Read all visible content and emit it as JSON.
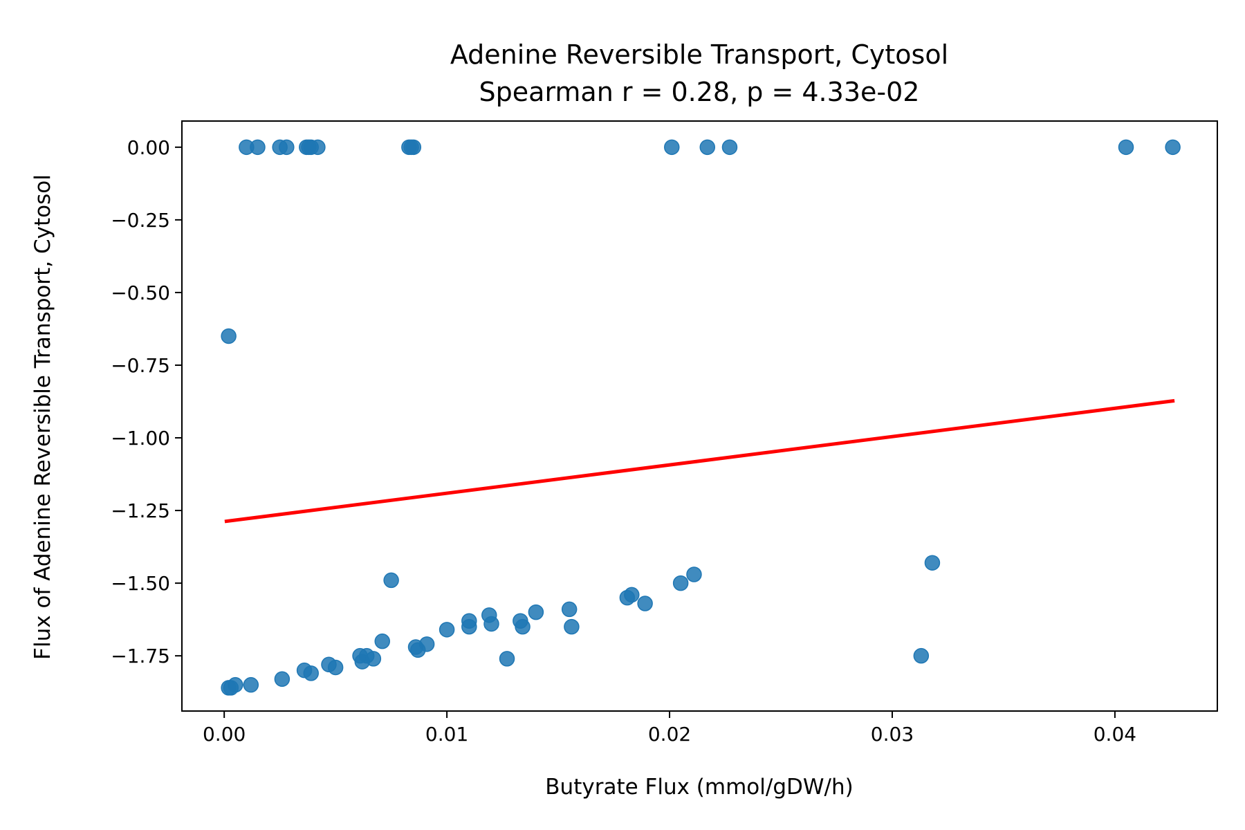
{
  "chart_data": {
    "type": "scatter",
    "title": "Adenine Reversible Transport, Cytosol",
    "subtitle": "Spearman r = 0.28, p = 4.33e-02",
    "xlabel": "Butyrate Flux (mmol/gDW/h)",
    "ylabel": "Flux of Adenine Reversible Transport, Cytosol",
    "xlim": [
      -0.0019,
      0.0446
    ],
    "ylim": [
      -1.94,
      0.09
    ],
    "xticks": [
      0.0,
      0.01,
      0.02,
      0.03,
      0.04
    ],
    "xtick_labels": [
      "0.00",
      "0.01",
      "0.02",
      "0.03",
      "0.04"
    ],
    "yticks": [
      0.0,
      -0.25,
      -0.5,
      -0.75,
      -1.0,
      -1.25,
      -1.5,
      -1.75
    ],
    "ytick_labels": [
      "0.00",
      "−0.25",
      "−0.50",
      "−0.75",
      "−1.00",
      "−1.25",
      "−1.50",
      "−1.75"
    ],
    "grid": false,
    "point_color": "#1f77b4",
    "line_color": "#ff0000",
    "series": [
      {
        "x": [
          0.001,
          0.0015,
          0.0025,
          0.0028,
          0.0037,
          0.0038,
          0.0039,
          0.0042,
          0.0083,
          0.0084,
          0.0085,
          0.0201,
          0.0217,
          0.0227,
          0.0405,
          0.0426,
          0.0002,
          0.0002,
          0.0003,
          0.0005,
          0.0012,
          0.0026,
          0.0036,
          0.0039,
          0.0047,
          0.005,
          0.0061,
          0.0062,
          0.0064,
          0.0067,
          0.0071,
          0.0075,
          0.0086,
          0.0087,
          0.0091,
          0.01,
          0.011,
          0.011,
          0.0119,
          0.012,
          0.0127,
          0.0133,
          0.0134,
          0.014,
          0.0155,
          0.0156,
          0.0181,
          0.0183,
          0.0189,
          0.0205,
          0.0211,
          0.0313,
          0.0318
        ],
        "y": [
          0.0,
          0.0,
          0.0,
          0.0,
          0.0,
          0.0,
          0.0,
          0.0,
          0.0,
          0.0,
          0.0,
          0.0,
          0.0,
          0.0,
          0.0,
          0.0,
          -0.65,
          -1.86,
          -1.86,
          -1.85,
          -1.85,
          -1.83,
          -1.8,
          -1.81,
          -1.78,
          -1.79,
          -1.75,
          -1.77,
          -1.75,
          -1.76,
          -1.7,
          -1.49,
          -1.72,
          -1.73,
          -1.71,
          -1.66,
          -1.63,
          -1.65,
          -1.61,
          -1.64,
          -1.76,
          -1.63,
          -1.65,
          -1.6,
          -1.59,
          -1.65,
          -1.55,
          -1.54,
          -1.57,
          -1.5,
          -1.47,
          -1.75,
          -1.43
        ]
      }
    ],
    "fit_line": {
      "x": [
        0.0001,
        0.0426
      ],
      "y": [
        -1.287,
        -0.873
      ]
    }
  }
}
